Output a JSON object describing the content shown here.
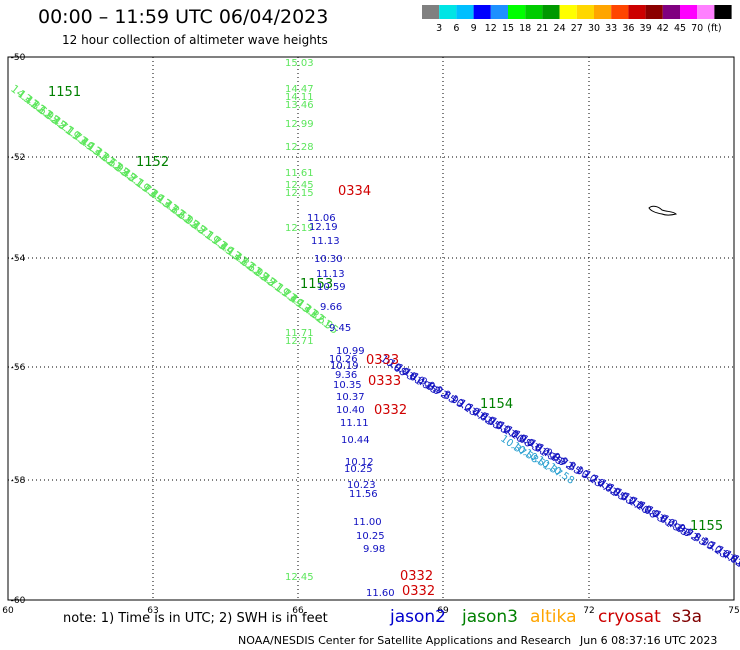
{
  "title": "00:00 – 11:59 UTC 06/04/2023",
  "subtitle": "12 hour collection of altimeter wave heights",
  "colorbar": {
    "colors": [
      "#808080",
      "#00e5e5",
      "#00bfff",
      "#0000ff",
      "#1e90ff",
      "#00ff00",
      "#00cc00",
      "#009900",
      "#ffff00",
      "#ffd700",
      "#ffa500",
      "#ff4500",
      "#cc0000",
      "#8b0000",
      "#800080",
      "#ff00ff",
      "#ff80ff",
      "#000000"
    ],
    "labels": [
      "3",
      "6",
      "9",
      "12",
      "15",
      "18",
      "21",
      "24",
      "27",
      "30",
      "33",
      "36",
      "39",
      "42",
      "45",
      "70",
      "(ft)"
    ]
  },
  "axes": {
    "x_ticks": [
      "60",
      "63",
      "66",
      "69",
      "72",
      "75"
    ],
    "y_ticks": [
      "-50",
      "-52",
      "-54",
      "-56",
      "-58",
      "-60"
    ]
  },
  "tracks": {
    "altika_diag": {
      "color": "#5ce65c",
      "times": [
        "1151",
        "1152",
        "1153"
      ],
      "values": [
        "14.47",
        "13.82",
        "13.61",
        "12.95",
        "12.45",
        "12.71",
        "12.19",
        "11.73",
        "11.49",
        "11.13"
      ]
    },
    "jason3_tracklabels": {
      "color": "#008000",
      "labels": [
        "1151",
        "1152",
        "1153",
        "1154",
        "1155"
      ]
    },
    "altika_vertical": {
      "color": "#5ce65c",
      "values": [
        "15.03",
        "14.47",
        "14.11",
        "13.46",
        "12.99",
        "12.28",
        "11.61",
        "12.45",
        "12.15",
        "12.19",
        "11.71",
        "12.71",
        "12.45"
      ]
    },
    "jason2_vertical": {
      "color": "#1010c0",
      "values": [
        "11.06",
        "12.19",
        "11.13",
        "10.30",
        "11.13",
        "10.59",
        "9.66",
        "9.45",
        "10.99",
        "10.26",
        "10.19",
        "9.36",
        "10.35",
        "10.37",
        "10.40",
        "11.11",
        "10.44",
        "10.12",
        "10.25",
        "10.23",
        "11.56",
        "11.00",
        "10.25",
        "9.98",
        "11.60"
      ]
    },
    "cryosat_times": {
      "color": "#d00000",
      "values": [
        "0334",
        "0333",
        "0332",
        "0332"
      ]
    },
    "jason2_diag": {
      "color": "#1010c0",
      "values": [
        "10.88",
        "10.73",
        "10.61",
        "10.49",
        "10.15",
        "9.88",
        "9.72",
        "9.65",
        "9.93",
        "10.23",
        "10.47",
        "10.62",
        "10.85",
        "10.53",
        "10.27",
        "10.10"
      ]
    },
    "altika_diag2": {
      "color": "#2aa0d0",
      "values": [
        "10.37",
        "10.58",
        "10.51"
      ]
    }
  },
  "legend": {
    "note": "note: 1) Time is in UTC; 2) SWH is in feet",
    "satellites": [
      {
        "name": "jason2",
        "color": "#0000cc"
      },
      {
        "name": "jason3",
        "color": "#008000"
      },
      {
        "name": "altika",
        "color": "#ffa500"
      },
      {
        "name": "cryosat",
        "color": "#cc0000"
      },
      {
        "name": "s3a",
        "color": "#800000"
      }
    ]
  },
  "footer": {
    "credit": "NOAA/NESDIS Center for Satellite Applications and Research",
    "timestamp": "Jun  6 08:37:16 UTC 2023"
  }
}
